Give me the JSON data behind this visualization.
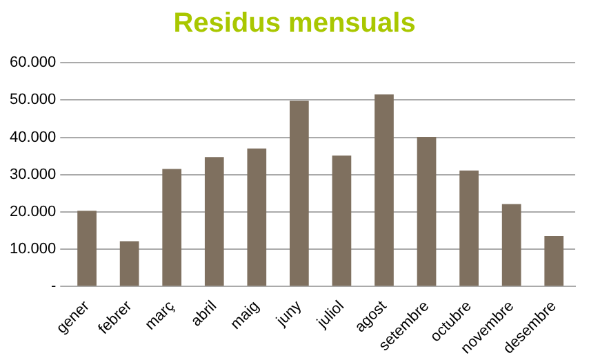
{
  "chart_data": {
    "type": "bar",
    "title": "Residus mensuals",
    "categories": [
      "gener",
      "febrer",
      "març",
      "abril",
      "maig",
      "juny",
      "juliol",
      "agost",
      "setembre",
      "octubre",
      "novembre",
      "desembre"
    ],
    "values": [
      20300,
      12100,
      31500,
      34700,
      37000,
      49800,
      35100,
      51500,
      40100,
      31100,
      22100,
      13500
    ],
    "color": "#7f705f",
    "ylim": [
      0,
      60000
    ],
    "yticks": [
      {
        "value": 0,
        "label": "-"
      },
      {
        "value": 10000,
        "label": "10.000"
      },
      {
        "value": 20000,
        "label": "20.000"
      },
      {
        "value": 30000,
        "label": "30.000"
      },
      {
        "value": 40000,
        "label": "40.000"
      },
      {
        "value": 50000,
        "label": "50.000"
      },
      {
        "value": 60000,
        "label": "60.000"
      }
    ],
    "grid": "y",
    "legend": false
  }
}
